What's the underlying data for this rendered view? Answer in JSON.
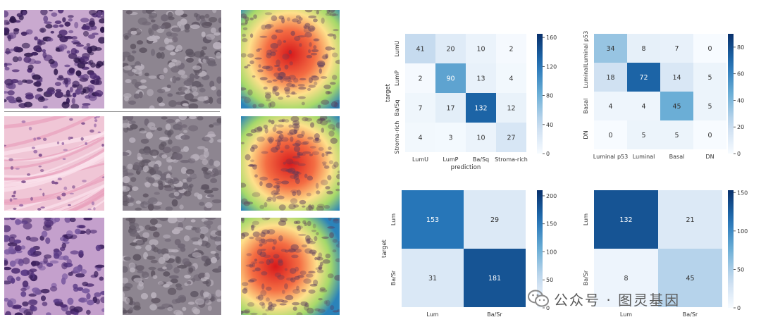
{
  "tiles": [
    {
      "row": 0,
      "kind": "he-tumor"
    },
    {
      "row": 0,
      "kind": "gray"
    },
    {
      "row": 0,
      "kind": "heat"
    },
    {
      "row": 1,
      "kind": "he-stroma"
    },
    {
      "row": 1,
      "kind": "gray"
    },
    {
      "row": 1,
      "kind": "heat"
    },
    {
      "row": 2,
      "kind": "he-tumor-2"
    },
    {
      "row": 2,
      "kind": "gray"
    },
    {
      "row": 2,
      "kind": "heat"
    }
  ],
  "chart_data": [
    {
      "type": "heatmap",
      "xlabel": "prediction",
      "ylabel": "target",
      "categories_x": [
        "LumU",
        "LumP",
        "Ba/Sq",
        "Stroma-rich"
      ],
      "categories_y": [
        "LumU",
        "LumP",
        "Ba/Sq",
        "Stroma-rich"
      ],
      "matrix": [
        [
          41,
          20,
          10,
          2
        ],
        [
          2,
          90,
          13,
          4
        ],
        [
          7,
          17,
          132,
          12
        ],
        [
          4,
          3,
          10,
          27
        ]
      ],
      "colorbar": {
        "min": 0,
        "max": 165,
        "ticks": [
          0,
          40,
          80,
          120,
          160
        ]
      }
    },
    {
      "type": "heatmap",
      "xlabel": "",
      "ylabel": "",
      "categories_x": [
        "Luminal p53",
        "Luminal",
        "Basal",
        "DN"
      ],
      "categories_y": [
        "Luminal p53",
        "Luminal",
        "Basal",
        "DN"
      ],
      "matrix": [
        [
          34,
          8,
          7,
          0
        ],
        [
          18,
          72,
          14,
          5
        ],
        [
          4,
          4,
          45,
          5
        ],
        [
          0,
          5,
          5,
          0
        ]
      ],
      "colorbar": {
        "min": 0,
        "max": 90,
        "ticks": [
          0,
          20,
          40,
          60,
          80
        ]
      }
    },
    {
      "type": "heatmap",
      "xlabel": "",
      "ylabel": "target",
      "categories_x": [
        "Lum",
        "Ba/Sr"
      ],
      "categories_y": [
        "Lum",
        "Ba/Sr"
      ],
      "matrix": [
        [
          153,
          29
        ],
        [
          31,
          181
        ]
      ],
      "colorbar": {
        "min": 0,
        "max": 210,
        "ticks": [
          0,
          50,
          100,
          150,
          200
        ]
      }
    },
    {
      "type": "heatmap",
      "xlabel": "",
      "ylabel": "",
      "categories_x": [
        "Lum",
        "Ba/Sr"
      ],
      "categories_y": [
        "Lum",
        "Ba/Sr"
      ],
      "matrix": [
        [
          132,
          21
        ],
        [
          8,
          45
        ]
      ],
      "colorbar": {
        "min": 0,
        "max": 153,
        "ticks": [
          0,
          50,
          100,
          150
        ]
      }
    }
  ],
  "watermark": {
    "text": "公众号 · 图灵基因",
    "icon": "wechat-icon"
  }
}
